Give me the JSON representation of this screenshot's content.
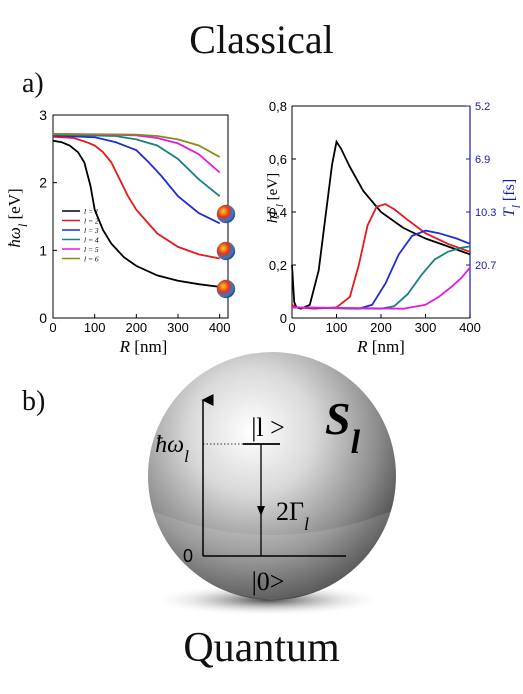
{
  "titles": {
    "top": "Classical",
    "bottom": "Quantum"
  },
  "panel_labels": {
    "a": "a)",
    "b": "b)"
  },
  "chart_data": [
    {
      "type": "line",
      "xlabel": "R [nm]",
      "ylabel": "ħω_l [eV]",
      "xlim": [
        0,
        420
      ],
      "ylim": [
        0,
        3
      ],
      "x_ticks": [
        "0",
        "100",
        "200",
        "300",
        "400"
      ],
      "y_ticks": [
        "0",
        "1",
        "2",
        "3"
      ],
      "legend_position": "lower-left",
      "series": [
        {
          "name": "l = 1",
          "color": "#000000",
          "x": [
            0,
            20,
            40,
            60,
            75,
            90,
            100,
            120,
            140,
            170,
            200,
            250,
            300,
            350,
            400
          ],
          "y": [
            2.62,
            2.6,
            2.55,
            2.45,
            2.3,
            1.95,
            1.6,
            1.3,
            1.1,
            0.9,
            0.77,
            0.63,
            0.55,
            0.5,
            0.46
          ]
        },
        {
          "name": "l = 2",
          "color": "#e41a1c",
          "x": [
            0,
            50,
            80,
            100,
            120,
            140,
            160,
            180,
            200,
            250,
            300,
            350,
            400
          ],
          "y": [
            2.68,
            2.66,
            2.6,
            2.55,
            2.45,
            2.3,
            2.05,
            1.8,
            1.6,
            1.25,
            1.05,
            0.94,
            0.88
          ]
        },
        {
          "name": "l = 3",
          "color": "#1f2dd6",
          "x": [
            0,
            100,
            150,
            200,
            230,
            260,
            300,
            350,
            400
          ],
          "y": [
            2.7,
            2.67,
            2.6,
            2.48,
            2.3,
            2.1,
            1.8,
            1.55,
            1.4
          ]
        },
        {
          "name": "l = 4",
          "color": "#1a8080",
          "x": [
            0,
            150,
            200,
            250,
            300,
            350,
            400
          ],
          "y": [
            2.71,
            2.69,
            2.64,
            2.55,
            2.35,
            2.05,
            1.8
          ]
        },
        {
          "name": "l = 5",
          "color": "#e01ae0",
          "x": [
            0,
            200,
            250,
            300,
            350,
            400
          ],
          "y": [
            2.72,
            2.7,
            2.66,
            2.58,
            2.42,
            2.15
          ]
        },
        {
          "name": "l = 6",
          "color": "#8a8a1a",
          "x": [
            0,
            200,
            250,
            300,
            350,
            400
          ],
          "y": [
            2.72,
            2.71,
            2.69,
            2.64,
            2.55,
            2.38
          ]
        }
      ]
    },
    {
      "type": "line",
      "xlabel": "R [nm]",
      "ylabel": "hΓ_l [eV]",
      "y2label": "T_l [fs]",
      "xlim": [
        0,
        400
      ],
      "ylim": [
        0,
        0.8
      ],
      "x_ticks": [
        "0",
        "100",
        "200",
        "300",
        "400"
      ],
      "y_ticks": [
        "0",
        "0,2",
        "0,4",
        "0,6",
        "0,8"
      ],
      "y2_ticks": [
        "5.2",
        "6.9",
        "10.3",
        "20.7"
      ],
      "series": [
        {
          "name": "l = 1",
          "color": "#000000",
          "x": [
            0,
            5,
            10,
            20,
            40,
            60,
            75,
            90,
            100,
            110,
            130,
            160,
            200,
            250,
            300,
            350,
            400
          ],
          "y": [
            0.2,
            0.06,
            0.04,
            0.035,
            0.05,
            0.18,
            0.38,
            0.58,
            0.665,
            0.64,
            0.57,
            0.48,
            0.4,
            0.34,
            0.3,
            0.27,
            0.24
          ]
        },
        {
          "name": "l = 2",
          "color": "#e41a1c",
          "x": [
            0,
            10,
            50,
            100,
            130,
            150,
            170,
            190,
            210,
            230,
            260,
            300,
            350,
            400
          ],
          "y": [
            0.05,
            0.04,
            0.035,
            0.04,
            0.08,
            0.2,
            0.35,
            0.42,
            0.43,
            0.41,
            0.37,
            0.32,
            0.28,
            0.25
          ]
        },
        {
          "name": "l = 3",
          "color": "#1f2dd6",
          "x": [
            0,
            150,
            180,
            210,
            240,
            270,
            300,
            330,
            370,
            400
          ],
          "y": [
            0.04,
            0.035,
            0.05,
            0.13,
            0.24,
            0.31,
            0.33,
            0.32,
            0.3,
            0.28
          ]
        },
        {
          "name": "l = 4",
          "color": "#1a8080",
          "x": [
            0,
            200,
            230,
            260,
            290,
            320,
            350,
            380,
            400
          ],
          "y": [
            0.04,
            0.035,
            0.045,
            0.09,
            0.16,
            0.22,
            0.25,
            0.265,
            0.27
          ]
        },
        {
          "name": "l = 5",
          "color": "#e01ae0",
          "x": [
            0,
            250,
            300,
            330,
            360,
            380,
            400
          ],
          "y": [
            0.04,
            0.035,
            0.05,
            0.08,
            0.12,
            0.15,
            0.19
          ]
        }
      ]
    }
  ],
  "diagram": {
    "symbol": "S_l",
    "upper_level": "|l >",
    "lower_level": "|0>",
    "energy_label": "ħω_l",
    "zero_label": "0",
    "decay_label": "2Γ_l"
  },
  "colors": {
    "axis_right": "#1a1aa8",
    "mode_sphere_red": "#e8331c",
    "mode_sphere_yellow": "#f5d21e",
    "mode_sphere_blue": "#2a7bd6"
  }
}
